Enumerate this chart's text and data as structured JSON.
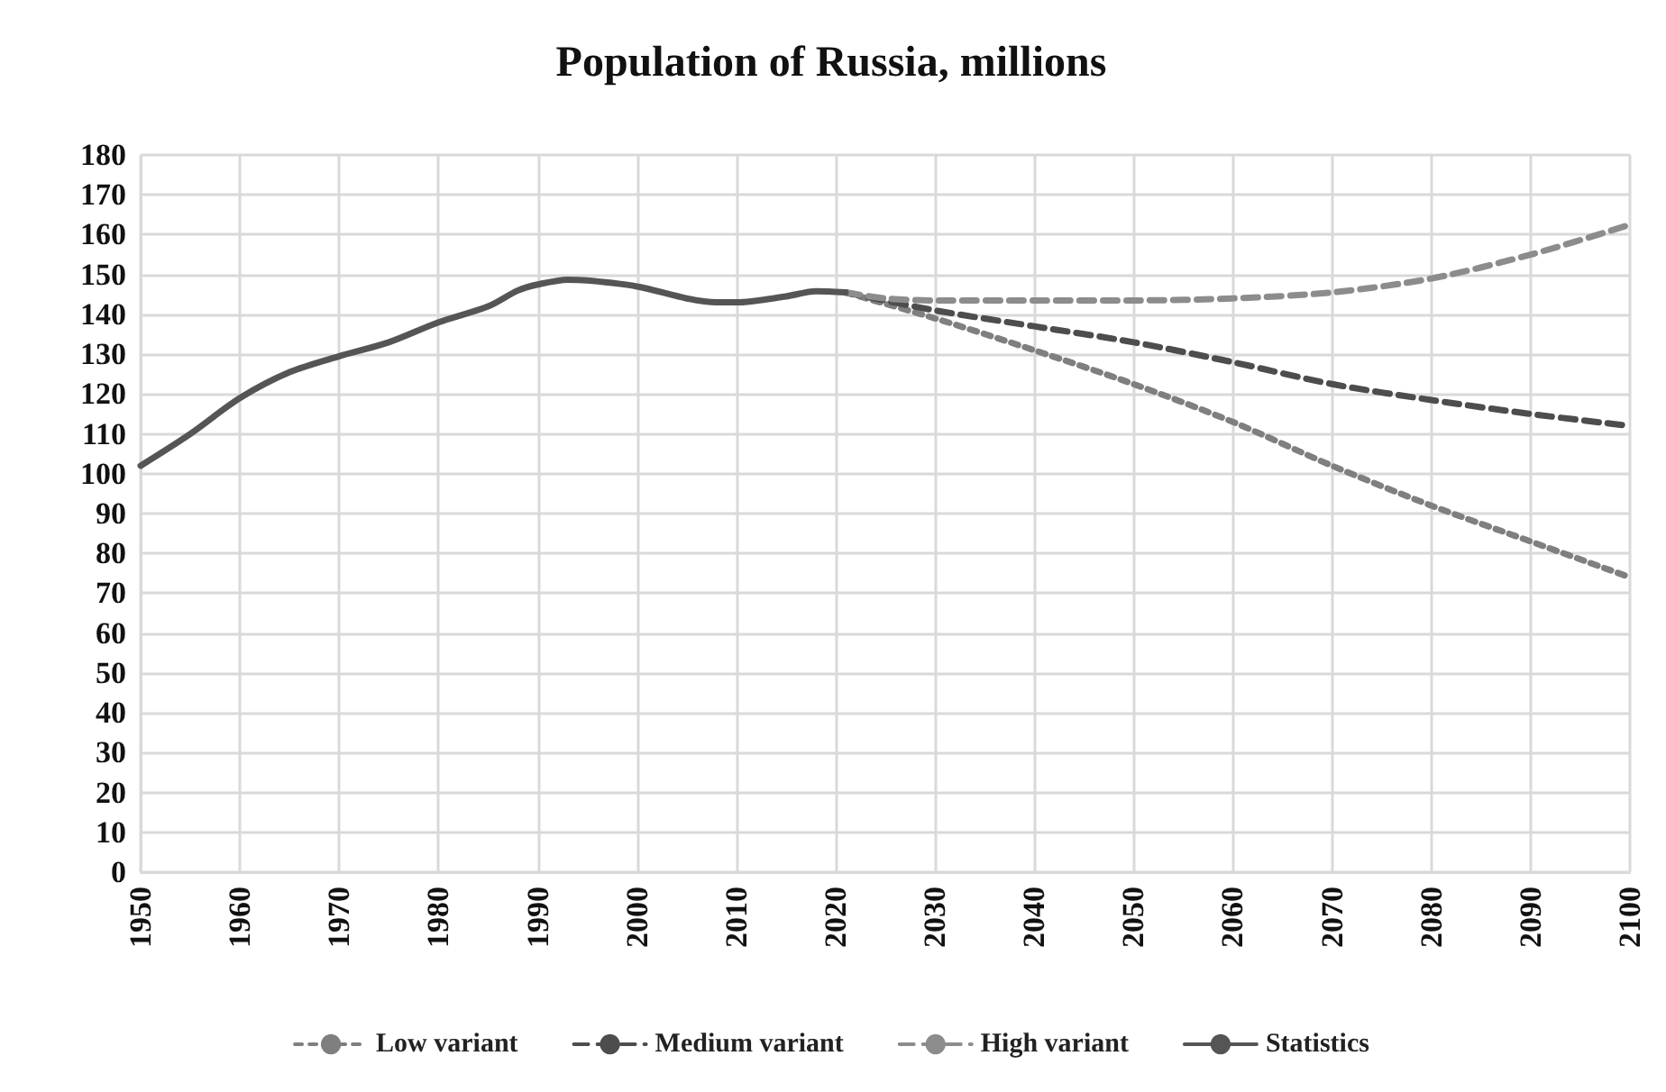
{
  "chart_data": {
    "type": "line",
    "title": "Population of Russia, millions",
    "xlim": [
      1950,
      2100
    ],
    "xticks": [
      1950,
      1960,
      1970,
      1980,
      1990,
      2000,
      2010,
      2020,
      2030,
      2040,
      2050,
      2060,
      2070,
      2080,
      2090,
      2100
    ],
    "ylim": [
      0,
      180
    ],
    "yticks": [
      0,
      10,
      20,
      30,
      40,
      50,
      60,
      70,
      80,
      90,
      100,
      110,
      120,
      130,
      140,
      150,
      160,
      170,
      180
    ],
    "grid": true,
    "legend": "bottom",
    "marker": "none",
    "series": [
      {
        "name": "Low variant",
        "color": "#7f7f7f",
        "line_style": "dotted",
        "x": [
          2021,
          2030,
          2040,
          2050,
          2060,
          2070,
          2080,
          2090,
          2100
        ],
        "values": [
          145.5,
          139,
          131,
          122.5,
          113,
          102,
          92,
          83,
          74
        ]
      },
      {
        "name": "Medium variant",
        "color": "#4d4d4d",
        "line_style": "dashed",
        "x": [
          2021,
          2030,
          2040,
          2050,
          2060,
          2070,
          2080,
          2090,
          2100
        ],
        "values": [
          145.5,
          141,
          137,
          133,
          128,
          122.5,
          118.5,
          115,
          112
        ]
      },
      {
        "name": "High variant",
        "color": "#8c8c8c",
        "line_style": "dashed",
        "x": [
          2021,
          2025,
          2030,
          2040,
          2050,
          2060,
          2070,
          2080,
          2090,
          2100
        ],
        "values": [
          145.5,
          144,
          143.5,
          143.5,
          143.5,
          144,
          145.5,
          149,
          155,
          162.5
        ]
      },
      {
        "name": "Statistics",
        "color": "#555555",
        "line_style": "solid",
        "x": [
          1950,
          1955,
          1960,
          1965,
          1970,
          1975,
          1980,
          1985,
          1988,
          1990,
          1993,
          1995,
          2000,
          2005,
          2008,
          2010,
          2015,
          2018,
          2021
        ],
        "values": [
          102,
          110,
          119,
          125.5,
          129.5,
          133,
          138,
          142,
          146,
          147.5,
          148.7,
          148.5,
          147,
          144,
          143,
          143,
          144.5,
          145.8,
          145.5
        ]
      }
    ]
  }
}
